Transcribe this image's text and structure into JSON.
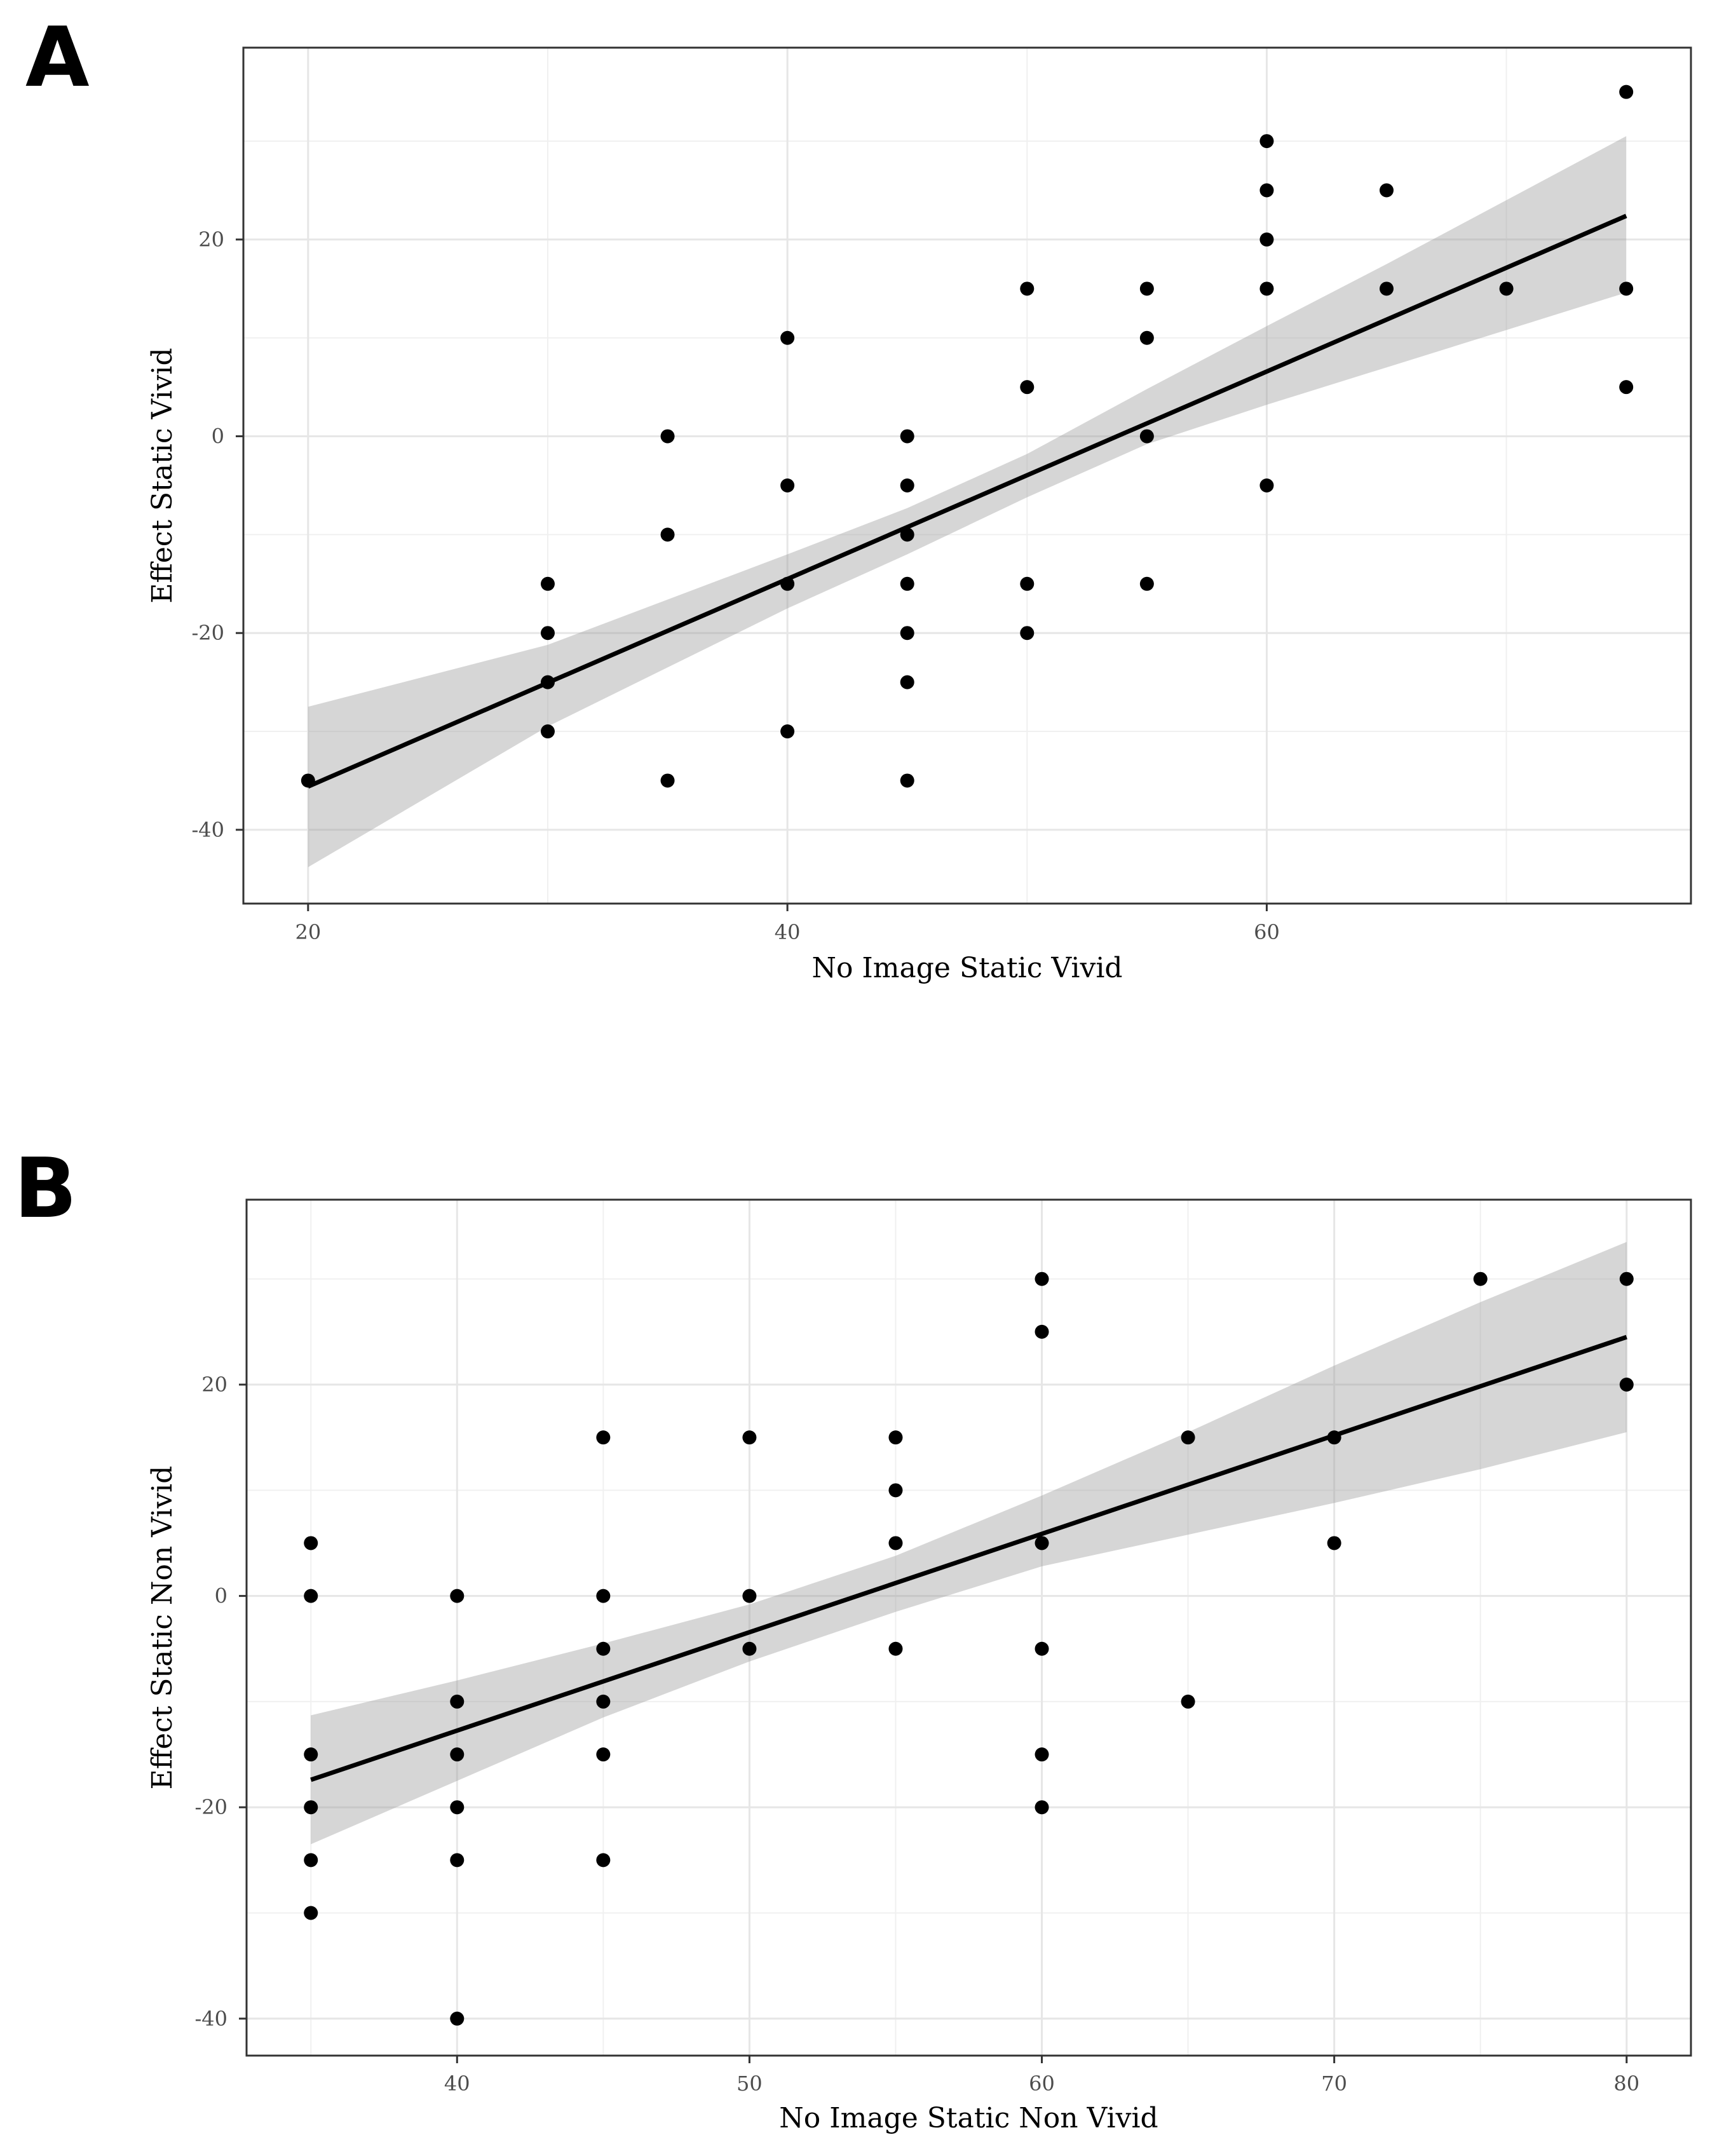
{
  "chart_data": [
    {
      "type": "scatter",
      "panel_label": "A",
      "xlabel": "No Image Static Vivid",
      "ylabel": "Effect Static Vivid",
      "xlim": [
        17.3,
        77.7
      ],
      "ylim": [
        -47.5,
        39.5
      ],
      "xticks": [
        20,
        40,
        60
      ],
      "yticks": [
        -40,
        -20,
        0,
        20
      ],
      "grid": true,
      "points": [
        [
          20,
          -35
        ],
        [
          30,
          -15
        ],
        [
          30,
          -20
        ],
        [
          30,
          -25
        ],
        [
          30,
          -30
        ],
        [
          35,
          0
        ],
        [
          35,
          -10
        ],
        [
          35,
          -35
        ],
        [
          40,
          10
        ],
        [
          40,
          -5
        ],
        [
          40,
          -15
        ],
        [
          40,
          -30
        ],
        [
          45,
          0
        ],
        [
          45,
          -5
        ],
        [
          45,
          -10
        ],
        [
          45,
          -15
        ],
        [
          45,
          -20
        ],
        [
          45,
          -25
        ],
        [
          45,
          -35
        ],
        [
          50,
          15
        ],
        [
          50,
          5
        ],
        [
          50,
          -15
        ],
        [
          50,
          -20
        ],
        [
          55,
          15
        ],
        [
          55,
          10
        ],
        [
          55,
          0
        ],
        [
          55,
          -15
        ],
        [
          60,
          30
        ],
        [
          60,
          25
        ],
        [
          60,
          20
        ],
        [
          60,
          15
        ],
        [
          60,
          -5
        ],
        [
          65,
          25
        ],
        [
          65,
          15
        ],
        [
          70,
          15
        ],
        [
          75,
          35
        ],
        [
          75,
          15
        ],
        [
          75,
          5
        ]
      ],
      "fit_line": {
        "x": [
          20,
          75
        ],
        "y": [
          -35.6,
          22.4
        ]
      },
      "confidence_band": {
        "x": [
          20,
          30,
          40,
          45,
          50,
          55,
          60,
          65,
          70,
          75
        ],
        "lower": [
          -43.8,
          -29.5,
          -17.5,
          -12.0,
          -6.2,
          -0.8,
          3.2,
          7.0,
          10.8,
          14.6
        ],
        "upper": [
          -27.5,
          -21.2,
          -12.0,
          -7.3,
          -1.8,
          4.8,
          11.2,
          17.5,
          24.0,
          30.5
        ]
      }
    },
    {
      "type": "scatter",
      "panel_label": "B",
      "xlabel": "No Image Static Non Vivid",
      "ylabel": "Effect Static Non Vivid",
      "xlim": [
        32.8,
        82.2
      ],
      "ylim": [
        -43.5,
        37.5
      ],
      "xticks": [
        40,
        50,
        60,
        70,
        80
      ],
      "yticks": [
        -40,
        -20,
        0,
        20
      ],
      "grid": true,
      "points": [
        [
          35,
          5
        ],
        [
          35,
          0
        ],
        [
          35,
          -15
        ],
        [
          35,
          -20
        ],
        [
          35,
          -25
        ],
        [
          35,
          -30
        ],
        [
          40,
          0
        ],
        [
          40,
          -10
        ],
        [
          40,
          -15
        ],
        [
          40,
          -20
        ],
        [
          40,
          -25
        ],
        [
          40,
          -40
        ],
        [
          45,
          15
        ],
        [
          45,
          0
        ],
        [
          45,
          -5
        ],
        [
          45,
          -10
        ],
        [
          45,
          -15
        ],
        [
          45,
          -25
        ],
        [
          50,
          15
        ],
        [
          50,
          0
        ],
        [
          50,
          -5
        ],
        [
          55,
          15
        ],
        [
          55,
          10
        ],
        [
          55,
          5
        ],
        [
          55,
          -5
        ],
        [
          60,
          30
        ],
        [
          60,
          25
        ],
        [
          60,
          5
        ],
        [
          60,
          -5
        ],
        [
          60,
          -15
        ],
        [
          60,
          -20
        ],
        [
          65,
          15
        ],
        [
          65,
          -10
        ],
        [
          70,
          15
        ],
        [
          70,
          5
        ],
        [
          75,
          30
        ],
        [
          80,
          30
        ],
        [
          80,
          20
        ]
      ],
      "fit_line": {
        "x": [
          35,
          80
        ],
        "y": [
          -17.4,
          24.5
        ]
      },
      "confidence_band": {
        "x": [
          35,
          40,
          45,
          50,
          55,
          60,
          65,
          70,
          75,
          80
        ],
        "lower": [
          -23.5,
          -17.5,
          -11.5,
          -6.2,
          -1.5,
          2.8,
          5.8,
          8.8,
          12.0,
          15.5
        ],
        "upper": [
          -11.3,
          -8.0,
          -4.5,
          -0.8,
          3.8,
          9.5,
          15.5,
          21.8,
          27.8,
          33.5
        ]
      }
    }
  ]
}
